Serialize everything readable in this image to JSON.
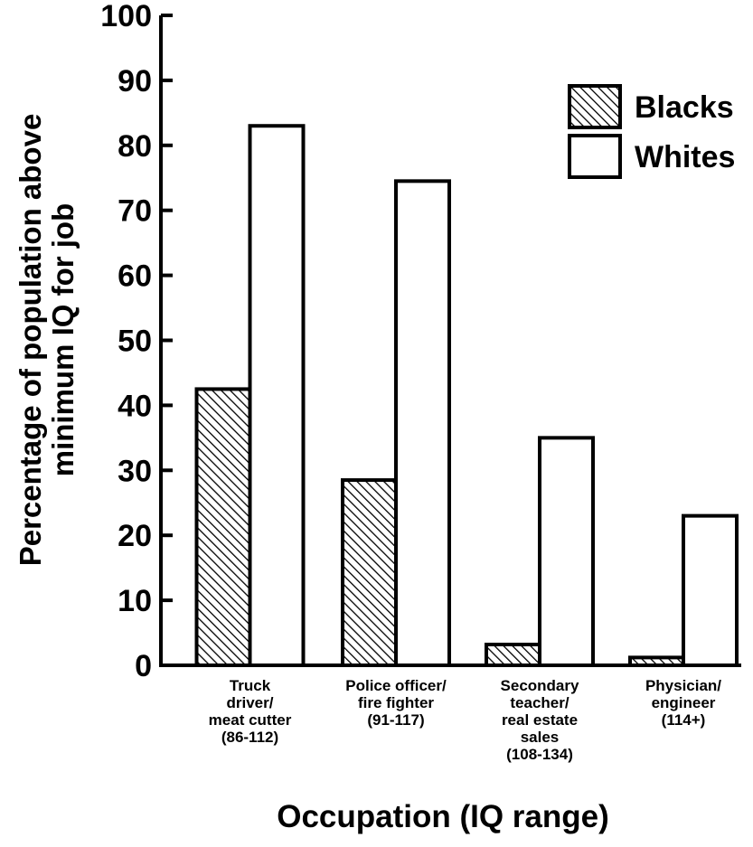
{
  "chart_data": {
    "type": "bar",
    "title": "",
    "xlabel": "Occupation (IQ range)",
    "ylabel": [
      "Percentage of population above",
      "minimum IQ for job"
    ],
    "ylim": [
      0,
      100
    ],
    "yticks": [
      0,
      10,
      20,
      30,
      40,
      50,
      60,
      70,
      80,
      90,
      100
    ],
    "categories": [
      [
        "Truck",
        "driver/",
        "meat cutter",
        "(86-112)"
      ],
      [
        "Police officer/",
        "fire fighter",
        "(91-117)"
      ],
      [
        "Secondary",
        "teacher/",
        "real estate",
        "sales",
        "(108-134)"
      ],
      [
        "Physician/",
        "engineer",
        "(114+)"
      ]
    ],
    "series": [
      {
        "name": "Blacks",
        "values": [
          42.5,
          28.5,
          3.2,
          1.2
        ],
        "fill": "hatched"
      },
      {
        "name": "Whites",
        "values": [
          83,
          74.5,
          35,
          23
        ],
        "fill": "white"
      }
    ],
    "legend_position": "top-right",
    "grid": false,
    "colors": {
      "stroke": "#000000",
      "background": "#ffffff"
    }
  }
}
